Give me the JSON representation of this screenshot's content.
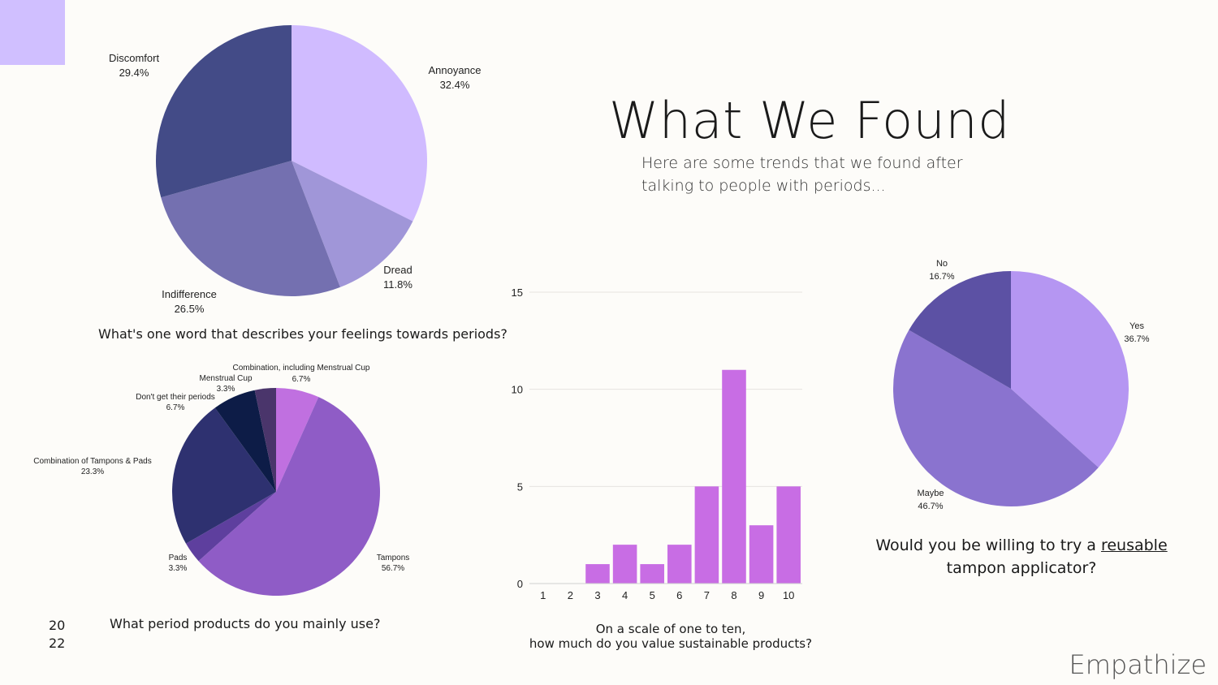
{
  "slide": {
    "title": "What We Found",
    "subtitle": "Here are some trends that we found after talking to people with periods...",
    "year_line1": "20",
    "year_line2": "22",
    "brand": "Empathize",
    "accent_color": "#d0bfff"
  },
  "chart_data": [
    {
      "type": "pie",
      "question": "What's one word that describes your feelings towards periods?",
      "slices": [
        {
          "label": "Annoyance",
          "value": 32.4,
          "display": "32.4%",
          "color": "#d0bbff"
        },
        {
          "label": "Dread",
          "value": 11.8,
          "display": "11.8%",
          "color": "#a096d8"
        },
        {
          "label": "Indifference",
          "value": 26.5,
          "display": "26.5%",
          "color": "#7470b0"
        },
        {
          "label": "Discomfort",
          "value": 29.4,
          "display": "29.4%",
          "color": "#434b87"
        }
      ]
    },
    {
      "type": "pie",
      "question": "What period products do you mainly use?",
      "slices": [
        {
          "label": "Combination, including Menstrual Cup",
          "value": 6.7,
          "display": "6.7%",
          "color": "#c070e0"
        },
        {
          "label": "Tampons",
          "value": 56.7,
          "display": "56.7%",
          "color": "#8f5cc6"
        },
        {
          "label": "Pads",
          "value": 3.3,
          "display": "3.3%",
          "color": "#5e3f9e"
        },
        {
          "label": "Combination of Tampons & Pads",
          "value": 23.3,
          "display": "23.3%",
          "color": "#2e3170"
        },
        {
          "label": "Don't get their periods",
          "value": 6.7,
          "display": "6.7%",
          "color": "#0d1c47"
        },
        {
          "label": "Menstrual Cup",
          "value": 3.3,
          "display": "3.3%",
          "color": "#4a356b"
        }
      ]
    },
    {
      "type": "bar",
      "question_line1": "On a scale of one to ten,",
      "question_line2": "how much do you value sustainable products?",
      "categories": [
        "1",
        "2",
        "3",
        "4",
        "5",
        "6",
        "7",
        "8",
        "9",
        "10"
      ],
      "values": [
        0,
        0,
        1,
        2,
        1,
        2,
        5,
        11,
        3,
        5
      ],
      "ylim": [
        0,
        15
      ],
      "yticks": [
        0,
        5,
        10,
        15
      ],
      "bar_color": "#c86de4",
      "grid": true
    },
    {
      "type": "pie",
      "question_pre": "Would you be willing to try a ",
      "question_underlined": "reusable",
      "question_line2": "tampon applicator?",
      "slices": [
        {
          "label": "Yes",
          "value": 36.7,
          "display": "36.7%",
          "color": "#b596f2"
        },
        {
          "label": "Maybe",
          "value": 46.7,
          "display": "46.7%",
          "color": "#8a73cf"
        },
        {
          "label": "No",
          "value": 16.7,
          "display": "16.7%",
          "color": "#5c51a4"
        }
      ]
    }
  ]
}
